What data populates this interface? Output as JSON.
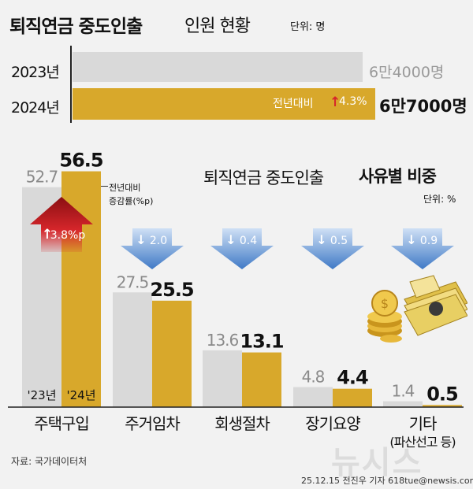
{
  "header": {
    "title_bold": "퇴직연금 중도인출",
    "title_rest": "인원 현황",
    "unit": "단위: 명"
  },
  "totals": {
    "rows": [
      {
        "year": "2023년",
        "value": 64000,
        "label": "6만4000명",
        "color": "#d9d9d9"
      },
      {
        "year": "2024년",
        "value": 67000,
        "label": "6만7000명",
        "color": "#d8a82b",
        "change_text": "전년대비",
        "change_value": "4.3%"
      }
    ]
  },
  "section": {
    "title_plain": "퇴직연금 중도인출",
    "title_bold": "사유별 비중",
    "unit": "단위: %",
    "change_label_line1": "전년대비",
    "change_label_line2": "증감률(%p)"
  },
  "chart_data": {
    "type": "bar",
    "categories": [
      "주택구입",
      "주거임차",
      "회생절차",
      "장기요양",
      "기타"
    ],
    "category_note": "(파산선고 등)",
    "series": [
      {
        "name": "'23년",
        "values": [
          52.7,
          27.5,
          13.6,
          4.8,
          1.4
        ],
        "labels": [
          "52.7",
          "27.5",
          "13.6",
          "4.8",
          "1.4"
        ],
        "color": "#d9d9d9"
      },
      {
        "name": "'24년",
        "values": [
          56.5,
          25.5,
          13.1,
          4.4,
          0.5
        ],
        "labels": [
          "56.5",
          "25.5",
          "13.1",
          "4.4",
          "0.5"
        ],
        "color": "#d8a82b"
      }
    ],
    "changes": [
      {
        "label": "3.8%p",
        "direction": "up"
      },
      {
        "label": "2.0",
        "direction": "down"
      },
      {
        "label": "0.4",
        "direction": "down"
      },
      {
        "label": "0.5",
        "direction": "down"
      },
      {
        "label": "0.9",
        "direction": "down"
      }
    ],
    "colors": {
      "accent_up": "#d6262b",
      "accent_down": "#5b8fd6"
    }
  },
  "footer": {
    "source": "자료: 국가데이터처",
    "credit": "25.12.15 전진우 기자 618tue@newsis.com",
    "watermark": "뉴시스"
  }
}
